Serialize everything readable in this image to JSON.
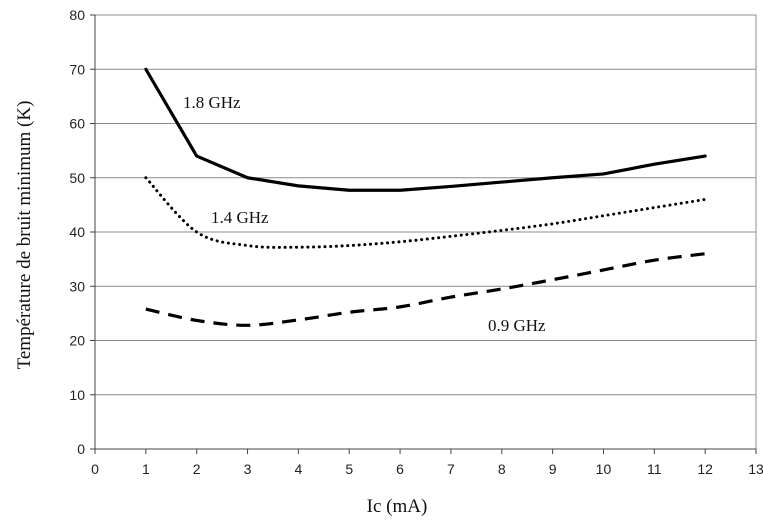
{
  "chart_data": {
    "type": "line",
    "xlabel": "Ic (mA)",
    "ylabel": "Température de bruit minimum (K)",
    "xlim": [
      0,
      13
    ],
    "ylim": [
      0,
      80
    ],
    "x_ticks": [
      0,
      1,
      2,
      3,
      4,
      5,
      6,
      7,
      8,
      9,
      10,
      11,
      12,
      13
    ],
    "y_ticks": [
      0,
      10,
      20,
      30,
      40,
      50,
      60,
      70,
      80
    ],
    "grid": "horizontal",
    "legend": "none",
    "series": [
      {
        "name": "1.8 GHz",
        "style": "solid",
        "color": "#000000",
        "x": [
          1,
          2,
          3,
          4,
          5,
          6,
          7,
          8,
          9,
          10,
          11,
          12
        ],
        "y": [
          70,
          54,
          50,
          48.5,
          47.7,
          47.7,
          48.4,
          49.2,
          50,
          50.7,
          52.5,
          54
        ]
      },
      {
        "name": "1.4 GHz",
        "style": "dotted",
        "color": "#000000",
        "x": [
          1,
          2,
          3,
          4,
          5,
          6,
          7,
          8,
          9,
          10,
          11,
          12
        ],
        "y": [
          50,
          40,
          37.5,
          37.2,
          37.5,
          38.2,
          39.2,
          40.3,
          41.5,
          43,
          44.5,
          46
        ]
      },
      {
        "name": "0.9 GHz",
        "style": "dashed",
        "color": "#000000",
        "x": [
          1,
          2,
          3,
          4,
          5,
          6,
          7,
          8,
          9,
          10,
          11,
          12
        ],
        "y": [
          25.8,
          23.7,
          22.8,
          23.8,
          25.2,
          26.2,
          28,
          29.5,
          31.2,
          33,
          34.8,
          36
        ]
      }
    ]
  }
}
